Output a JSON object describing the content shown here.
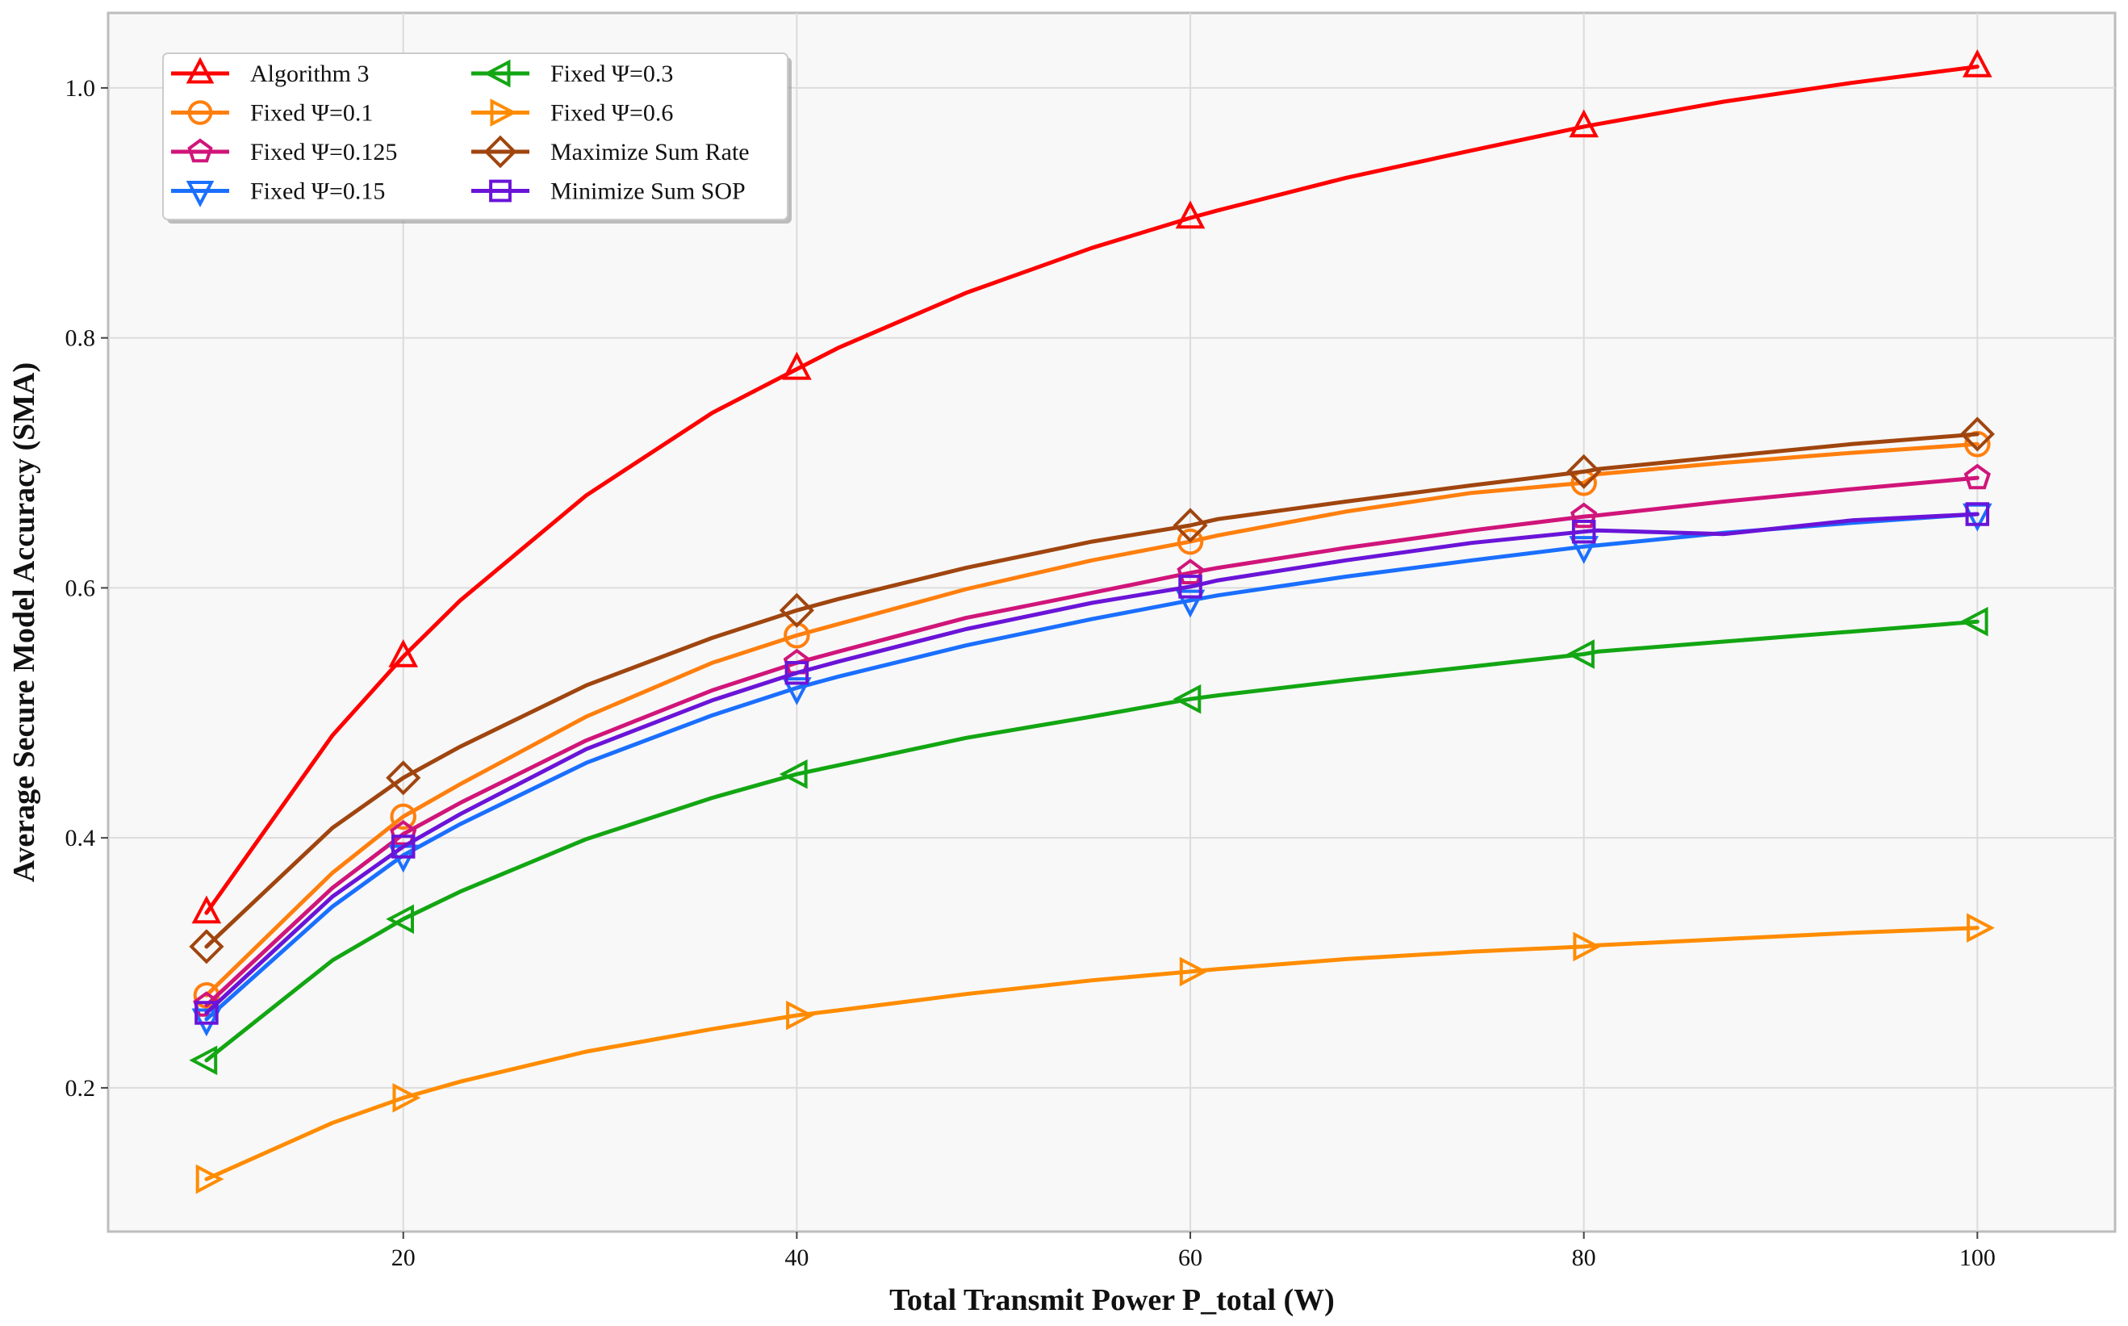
{
  "chart_data": {
    "type": "line",
    "title": "",
    "xlabel": "Total Transmit Power P_total (W)",
    "ylabel": "Average Secure Model Accuracy (SMA)",
    "xlim": [
      5,
      107
    ],
    "ylim": [
      0.085,
      1.06
    ],
    "xticks": [
      20,
      40,
      60,
      80,
      100
    ],
    "xtick_labels": [
      "20",
      "40",
      "60",
      "80",
      "100"
    ],
    "yticks": [
      0.2,
      0.4,
      0.6,
      0.8,
      1.0
    ],
    "ytick_labels": [
      "0.2",
      "0.4",
      "0.6",
      "0.8",
      "1.0"
    ],
    "grid": true,
    "legend_position": "top-left",
    "x": [
      10,
      16.4,
      20,
      22.9,
      29.3,
      35.7,
      40,
      42.1,
      48.6,
      55,
      60,
      61.4,
      67.9,
      74.3,
      80,
      80.7,
      87.1,
      93.6,
      100
    ],
    "marker_x": [
      10,
      20,
      40,
      60,
      80,
      100
    ],
    "series": [
      {
        "name": "Algorithm 3",
        "color": "#ff0000",
        "marker": "triangle-up",
        "values": [
          0.34,
          0.482,
          0.545,
          0.59,
          0.674,
          0.74,
          0.775,
          0.792,
          0.836,
          0.872,
          0.896,
          0.902,
          0.928,
          0.95,
          0.969,
          0.971,
          0.989,
          1.004,
          1.017
        ]
      },
      {
        "name": "Fixed Ψ=0.1",
        "color": "#ff7f0e",
        "marker": "circle",
        "values": [
          0.274,
          0.372,
          0.417,
          0.443,
          0.497,
          0.54,
          0.562,
          0.571,
          0.599,
          0.622,
          0.637,
          0.642,
          0.661,
          0.676,
          0.684,
          0.691,
          0.7,
          0.708,
          0.715
        ]
      },
      {
        "name": "Fixed Ψ=0.125",
        "color": "#d0157a",
        "marker": "pentagon",
        "values": [
          0.266,
          0.36,
          0.403,
          0.428,
          0.478,
          0.518,
          0.54,
          0.549,
          0.576,
          0.596,
          0.612,
          0.616,
          0.632,
          0.646,
          0.657,
          0.658,
          0.669,
          0.679,
          0.688
        ]
      },
      {
        "name": "Fixed Ψ=0.15",
        "color": "#1a6fff",
        "marker": "triangle-down",
        "values": [
          0.255,
          0.345,
          0.386,
          0.411,
          0.46,
          0.498,
          0.52,
          0.529,
          0.554,
          0.575,
          0.59,
          0.594,
          0.609,
          0.622,
          0.633,
          0.634,
          0.644,
          0.652,
          0.659
        ]
      },
      {
        "name": "Fixed Ψ=0.3",
        "color": "#13a613",
        "marker": "triangle-left",
        "values": [
          0.222,
          0.302,
          0.335,
          0.357,
          0.399,
          0.432,
          0.451,
          0.458,
          0.48,
          0.497,
          0.511,
          0.514,
          0.526,
          0.537,
          0.547,
          0.549,
          0.557,
          0.565,
          0.573
        ]
      },
      {
        "name": "Fixed Ψ=0.6",
        "color": "#ff8c00",
        "marker": "triangle-right",
        "values": [
          0.127,
          0.172,
          0.192,
          0.205,
          0.229,
          0.247,
          0.258,
          0.262,
          0.275,
          0.286,
          0.293,
          0.295,
          0.303,
          0.309,
          0.313,
          0.314,
          0.319,
          0.324,
          0.328
        ]
      },
      {
        "name": "Maximize Sum Rate",
        "color": "#a0450f",
        "marker": "diamond",
        "values": [
          0.313,
          0.408,
          0.448,
          0.473,
          0.522,
          0.56,
          0.582,
          0.591,
          0.616,
          0.637,
          0.65,
          0.655,
          0.669,
          0.682,
          0.693,
          0.695,
          0.705,
          0.715,
          0.723
        ]
      },
      {
        "name": "Minimize Sum SOP",
        "color": "#6a14d8",
        "marker": "square",
        "values": [
          0.26,
          0.353,
          0.393,
          0.419,
          0.471,
          0.51,
          0.532,
          0.541,
          0.567,
          0.588,
          0.601,
          0.606,
          0.622,
          0.636,
          0.645,
          0.646,
          0.643,
          0.654,
          0.659
        ]
      }
    ]
  }
}
